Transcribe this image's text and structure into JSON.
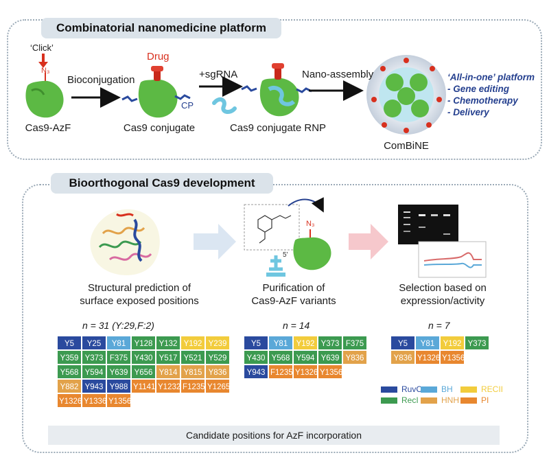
{
  "panel_a": {
    "title": "Combinatorial nanomedicine platform",
    "click_label": "‘Click’",
    "azide_label": "N₃",
    "steps": [
      "Bioconjugation",
      "+sgRNA",
      "Nano-assembly"
    ],
    "drug_label": "Drug",
    "cp_label": "CP",
    "species": [
      "Cas9-AzF",
      "Cas9 conjugate",
      "Cas9 conjugate RNP",
      "ComBiNE"
    ],
    "platform_lines": [
      "‘All-in-one’ platform",
      "- Gene editing",
      "- Chemotherapy",
      "- Delivery"
    ]
  },
  "panel_b": {
    "title": "Bioorthogonal Cas9 development",
    "azide_label": "N₃",
    "captions": [
      [
        "Structural prediction of",
        "surface exposed positions"
      ],
      [
        "Purification of",
        "Cas9-AzF variants"
      ],
      [
        "Selection based on",
        "expression/activity"
      ]
    ],
    "n_labels": [
      "n = 31 (Y:29,F:2)",
      "n = 14",
      "n = 7"
    ],
    "caption_bar": "Candidate positions for AzF incorporation"
  },
  "domain_colors": {
    "RuvC": "#2a4a9e",
    "BH": "#5aa8d8",
    "RECII": "#f2cc3c",
    "RecI": "#3c9a50",
    "HNH": "#e2a24a",
    "PI": "#e8872f"
  },
  "grids": [
    {
      "columns": 7,
      "cells": [
        {
          "label": "Y5",
          "domain": "RuvC"
        },
        {
          "label": "Y25",
          "domain": "RuvC"
        },
        {
          "label": "Y81",
          "domain": "BH"
        },
        {
          "label": "Y128",
          "domain": "RecI"
        },
        {
          "label": "Y132",
          "domain": "RecI"
        },
        {
          "label": "Y192",
          "domain": "RECII"
        },
        {
          "label": "Y239",
          "domain": "RECII"
        },
        {
          "label": "Y359",
          "domain": "RecI"
        },
        {
          "label": "Y373",
          "domain": "RecI"
        },
        {
          "label": "F375",
          "domain": "RecI"
        },
        {
          "label": "Y430",
          "domain": "RecI"
        },
        {
          "label": "Y517",
          "domain": "RecI"
        },
        {
          "label": "Y521",
          "domain": "RecI"
        },
        {
          "label": "Y529",
          "domain": "RecI"
        },
        {
          "label": "Y568",
          "domain": "RecI"
        },
        {
          "label": "Y594",
          "domain": "RecI"
        },
        {
          "label": "Y639",
          "domain": "RecI"
        },
        {
          "label": "Y656",
          "domain": "RecI"
        },
        {
          "label": "Y814",
          "domain": "HNH"
        },
        {
          "label": "Y815",
          "domain": "HNH"
        },
        {
          "label": "Y836",
          "domain": "HNH"
        },
        {
          "label": "Y882",
          "domain": "HNH"
        },
        {
          "label": "Y943",
          "domain": "RuvC"
        },
        {
          "label": "Y988",
          "domain": "RuvC"
        },
        {
          "label": "Y1141",
          "domain": "PI"
        },
        {
          "label": "Y1232",
          "domain": "PI"
        },
        {
          "label": "F1235",
          "domain": "PI"
        },
        {
          "label": "Y1265",
          "domain": "PI"
        },
        {
          "label": "Y1326",
          "domain": "PI"
        },
        {
          "label": "Y1336",
          "domain": "PI"
        },
        {
          "label": "Y1356",
          "domain": "PI"
        }
      ]
    },
    {
      "columns": 5,
      "cells": [
        {
          "label": "Y5",
          "domain": "RuvC"
        },
        {
          "label": "Y81",
          "domain": "BH"
        },
        {
          "label": "Y192",
          "domain": "RECII"
        },
        {
          "label": "Y373",
          "domain": "RecI"
        },
        {
          "label": "F375",
          "domain": "RecI"
        },
        {
          "label": "Y430",
          "domain": "RecI"
        },
        {
          "label": "Y568",
          "domain": "RecI"
        },
        {
          "label": "Y594",
          "domain": "RecI"
        },
        {
          "label": "Y639",
          "domain": "RecI"
        },
        {
          "label": "Y836",
          "domain": "HNH"
        },
        {
          "label": "Y943",
          "domain": "RuvC"
        },
        {
          "label": "F1235",
          "domain": "PI"
        },
        {
          "label": "Y1326",
          "domain": "PI"
        },
        {
          "label": "Y1356",
          "domain": "PI"
        }
      ]
    },
    {
      "columns": 4,
      "cells": [
        {
          "label": "Y5",
          "domain": "RuvC"
        },
        {
          "label": "Y81",
          "domain": "BH"
        },
        {
          "label": "Y192",
          "domain": "RECII"
        },
        {
          "label": "Y373",
          "domain": "RecI"
        },
        {
          "label": "Y836",
          "domain": "HNH"
        },
        {
          "label": "Y1326",
          "domain": "PI"
        },
        {
          "label": "Y1356",
          "domain": "PI"
        }
      ]
    }
  ],
  "legend": [
    {
      "label": "RuvC",
      "domain": "RuvC"
    },
    {
      "label": "BH",
      "domain": "BH"
    },
    {
      "label": "RECII",
      "domain": "RECII"
    },
    {
      "label": "RecI",
      "domain": "RecI"
    },
    {
      "label": "HNH",
      "domain": "HNH"
    },
    {
      "label": "PI",
      "domain": "PI"
    }
  ]
}
